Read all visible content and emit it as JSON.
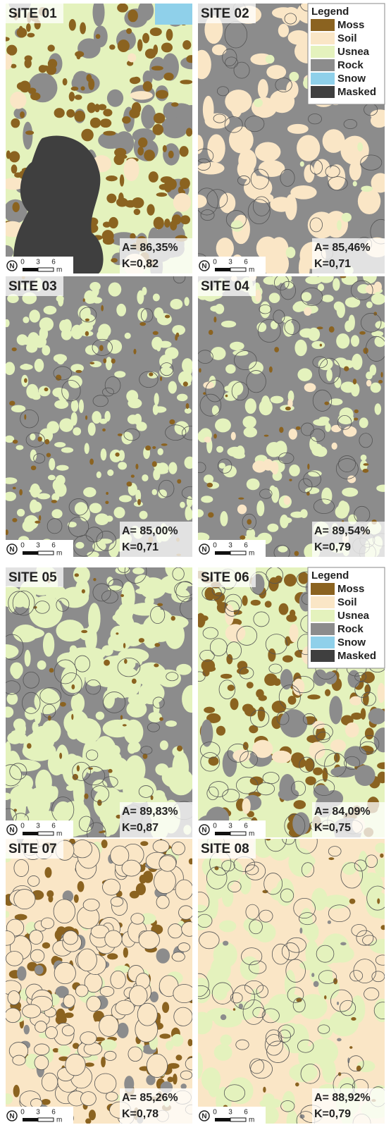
{
  "legend": {
    "title": "Legend",
    "items": [
      {
        "label": "Moss",
        "color": "#8b6320"
      },
      {
        "label": "Soil",
        "color": "#fae6c6"
      },
      {
        "label": "Usnea",
        "color": "#e4f2bd"
      },
      {
        "label": "Rock",
        "color": "#8c8c8c"
      },
      {
        "label": "Snow",
        "color": "#8fd0ea"
      },
      {
        "label": "Masked",
        "color": "#3f3f3f"
      }
    ]
  },
  "scale_bar": {
    "ticks": [
      "0",
      "3",
      "6"
    ],
    "unit": "m"
  },
  "north": "N",
  "panels": [
    {
      "title": "SITE 01",
      "accuracy": "A= 86,35%",
      "kappa": "K=0,82"
    },
    {
      "title": "SITE 02",
      "accuracy": "A= 85,46%",
      "kappa": "K=0,71"
    },
    {
      "title": "SITE 03",
      "accuracy": "A= 85,00%",
      "kappa": "K=0,71"
    },
    {
      "title": "SITE 04",
      "accuracy": "A= 89,54%",
      "kappa": "K=0,79"
    },
    {
      "title": "SITE 05",
      "accuracy": "A= 89,83%",
      "kappa": "K=0,87"
    },
    {
      "title": "SITE 06",
      "accuracy": "A= 84,09%",
      "kappa": "K=0,75"
    },
    {
      "title": "SITE 07",
      "accuracy": "A= 85,26%",
      "kappa": "K=0,78"
    },
    {
      "title": "SITE 08",
      "accuracy": "A= 88,92%",
      "kappa": "K=0,79"
    }
  ]
}
